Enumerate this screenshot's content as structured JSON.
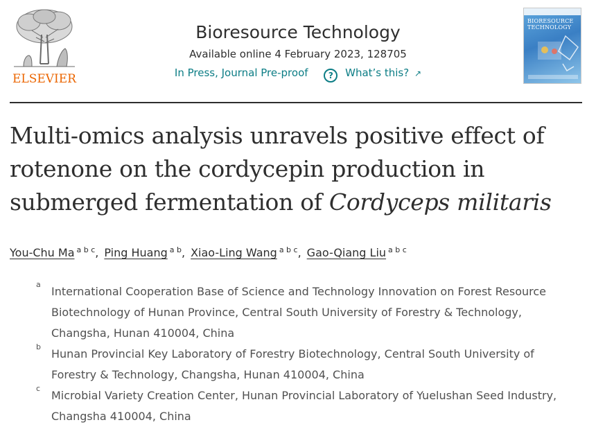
{
  "publisher": {
    "name": "ELSEVIER",
    "logo_icon": "elsevier-tree-icon"
  },
  "journal": {
    "title": "Bioresource Technology",
    "availability": "Available online 4 February 2023, 128705",
    "status": "In Press, Journal Pre-proof",
    "help_link": "What’s this?",
    "help_icon": "question-circle-icon",
    "cover_title": "BIORESOURCE TECHNOLOGY"
  },
  "article": {
    "title_line1": "Multi-omics analysis unravels positive effect of",
    "title_line2": "rotenone on the cordycepin production in",
    "title_line3_plain": "submerged fermentation of ",
    "title_line3_italic": "Cordyceps militaris"
  },
  "authors": [
    {
      "name": "You-Chu Ma",
      "sup": "a b c"
    },
    {
      "name": "Ping Huang",
      "sup": "a b"
    },
    {
      "name": "Xiao-Ling Wang",
      "sup": "a b c"
    },
    {
      "name": "Gao-Qiang Liu",
      "sup": "a b c"
    }
  ],
  "author_separator": ",",
  "affiliations": [
    {
      "label": "a",
      "text": "International Cooperation Base of Science and Technology Innovation on Forest Resource Biotechnology of Hunan Province, Central South University of Forestry & Technology, Changsha, Hunan 410004, China"
    },
    {
      "label": "b",
      "text": "Hunan Provincial Key Laboratory of Forestry Biotechnology, Central South University of Forestry & Technology, Changsha, Hunan 410004, China"
    },
    {
      "label": "c",
      "text": "Microbial Variety Creation Center, Hunan Provincial Laboratory of Yuelushan Seed Industry, Changsha 410004, China"
    }
  ],
  "colors": {
    "accent": "#0c7d85",
    "publisher": "#eb6500",
    "text": "#2e2e2e",
    "muted": "#505050"
  }
}
